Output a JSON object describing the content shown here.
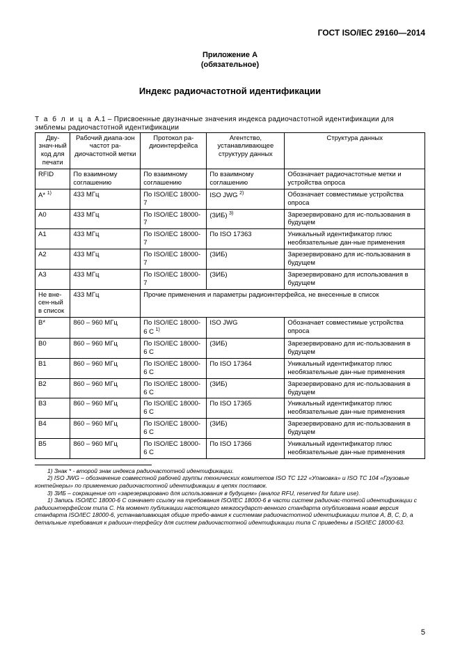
{
  "doc_id": "ГОСТ ISO/IEC 29160—2014",
  "appendix_line1": "Приложение А",
  "appendix_line2": "(обязательное)",
  "title": "Индекс радиочастотной идентификации",
  "table_caption_prefix": "Т а б л и ц а",
  "table_caption": "  А.1 – Присвоенные двузначные значения индекса радиочастотной идентификации для эмблемы радиочастотной идентификации",
  "headers": {
    "c0": "Дву-знач-ный код для печати",
    "c1": "Рабочий диапа-зон частот ра-диочастотной метки",
    "c2": "Протокол   ра-диоинтерфейса",
    "c3": "Агентство, устанавливающее структуру данных",
    "c4": "Структура данных"
  },
  "rows": [
    {
      "c0": "RFID",
      "c1": "По взаимному соглашению",
      "c2": "По взаимному соглашению",
      "c3": "По взаимному соглашению",
      "c4": "Обозначает радиочастотные метки и устройства опроса"
    },
    {
      "c0": "A* ",
      "sup0": "1)",
      "c1": "433 МГц",
      "c2": "По ISO/IEC 18000-7",
      "c3": " ISO JWG ",
      "sup3": "2)",
      "c4": "Обозначает совместимые устройства опроса"
    },
    {
      "c0": "A0",
      "c1": "433 МГц",
      "c2": "По ISO/IEC 18000-7",
      "c3": "(ЗИБ) ",
      "sup3": "3)",
      "c4": "Зарезервировано для ис-пользования в будущем"
    },
    {
      "c0": "A1",
      "c1": "433 МГц",
      "c2": "По ISO/IEC 18000-7",
      "c3": "По ISO 17363",
      "c4": "Уникальный идентификатор плюс необязательные дан-ные применения"
    },
    {
      "c0": "A2",
      "c1": "433 МГц",
      "c2": "По ISO/IEC 18000-7",
      "c3": "(ЗИБ)",
      "c4": "Зарезервировано для ис-пользования в будущем"
    },
    {
      "c0": "A3",
      "c1": "433 МГц",
      "c2": "По ISO/IEC 18000-7",
      "c3": "(ЗИБ)",
      "c4": "Зарезервировано для использования в будущем"
    },
    {
      "c0": "Не вне-сен-ный в список",
      "c1": "433 МГц",
      "c2span": "Прочие применения и параметры радиоинтерфейса, не внесенные в список",
      "span": true
    },
    {
      "c0": "B*",
      "c1": "860 – 960 МГц",
      "c2": "По ISO/IEC 18000-6 C ",
      "sup2": "1)",
      "c3": "ISO JWG",
      "c4": "Обозначает совместимые устройства опроса"
    },
    {
      "c0": "B0",
      "c1": "860 – 960 МГц",
      "c2": "По ISO/IEC 18000-6 C",
      "c3": "(ЗИБ)",
      "c4": "Зарезервировано для ис-пользования в будущем"
    },
    {
      "c0": "B1",
      "c1": "860 – 960 МГц",
      "c2": "По ISO/IEC 18000-6 C",
      "c3": "По ISO 17364",
      "c4": "Уникальный идентификатор плюс необязательные дан-ные применения"
    },
    {
      "c0": "B2",
      "c1": "860 – 960 МГц",
      "c2": "По ISO/IEC 18000-6 C",
      "c3": "(ЗИБ)",
      "c4": "Зарезервировано для ис-пользования в будущем"
    },
    {
      "c0": "B3",
      "c1": "860 – 960 МГц",
      "c2": "По ISO/IEC 18000-6 C",
      "c3": "По ISO 17365",
      "c4": "Уникальный идентификатор плюс необязательные дан-ные применения"
    },
    {
      "c0": "B4",
      "c1": "860 – 960 МГц",
      "c2": "По ISO/IEC 18000-6 C",
      "c3": "(ЗИБ)",
      "c4": "Зарезервировано для ис-пользования в будущем"
    },
    {
      "c0": "B5",
      "c1": "860 – 960 МГц",
      "c2": "По ISO/IEC 18000-6 C",
      "c3": "По ISO 17366",
      "c4": "Уникальный идентификатор плюс необязательные дан-ные применения"
    }
  ],
  "footnotes": {
    "f1": "1) Знак * - второй знак индекса радиочастотной идентификации.",
    "f2": "2) ISO JWG – обозначение совместной рабочей группы технических комитетов ISO TC 122 «Упаковка» и ISO TC 104 «Грузовые контейнеры» по применению радиочастотной идентификации в цепях поставок.",
    "f3": "3) ЗИБ – сокращение от «зарезервировано для использования в будущем» (аналог RFU, reserved for future use).",
    "f4": "1) Запись ISO/IEC 18000-6 C означает ссылку на требования ISO/IEC 18000-6  в части систем радиочас-тотной идентификации с радиоинтерфейсом типа C. На момент публикации настоящего межгосударст-венного стандарта опубликована новая версия стандарта ISO/IEC 18000-6, устанавливающая общие требо-вания к системам радиочастотной идентификации типов A, B, C, D, а детальные требования к  радиоин-терфейсу для систем радиочастотной идентификации типа C приведены в ISO/IEC 18000-63."
  },
  "page_num": "5"
}
